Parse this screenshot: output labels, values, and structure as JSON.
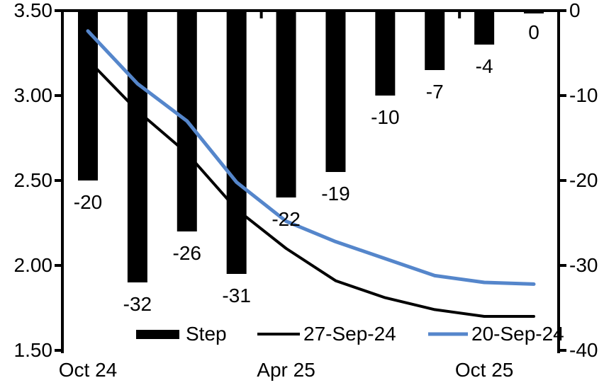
{
  "chart_data": {
    "type": "combo",
    "title": "",
    "n_categories": 10,
    "x_tick_labels": [
      {
        "index": 0,
        "label": "Oct 24"
      },
      {
        "index": 4,
        "label": "Apr 25"
      },
      {
        "index": 8,
        "label": "Oct 25"
      }
    ],
    "left_axis": {
      "min": 1.5,
      "max": 3.5,
      "tick_labels": [
        "3.50",
        "3.00",
        "2.50",
        "2.00",
        "1.50"
      ]
    },
    "right_axis": {
      "min": -40,
      "max": 0,
      "tick_labels": [
        "0",
        "-10",
        "-20",
        "-30",
        "-40"
      ]
    },
    "series": [
      {
        "name": "Step",
        "type": "bar",
        "axis": "right",
        "color": "#000000",
        "values": [
          -20,
          -32,
          -26,
          -31,
          -22,
          -19,
          -10,
          -7,
          -4,
          0
        ],
        "data_labels": [
          "-20",
          "-32",
          "-26",
          "-31",
          "-22",
          "-19",
          "-10",
          "-7",
          "-4",
          "0"
        ]
      },
      {
        "name": "27-Sep-24",
        "type": "line",
        "axis": "left",
        "color": "#000000",
        "values": [
          3.21,
          2.91,
          2.66,
          2.33,
          2.1,
          1.91,
          1.81,
          1.74,
          1.7,
          1.7
        ]
      },
      {
        "name": "20-Sep-24",
        "type": "line",
        "axis": "left",
        "color": "#5586CB",
        "values": [
          3.38,
          3.07,
          2.85,
          2.49,
          2.26,
          2.14,
          2.04,
          1.94,
          1.9,
          1.89
        ]
      }
    ],
    "legend_position": "bottom",
    "grid": false
  }
}
